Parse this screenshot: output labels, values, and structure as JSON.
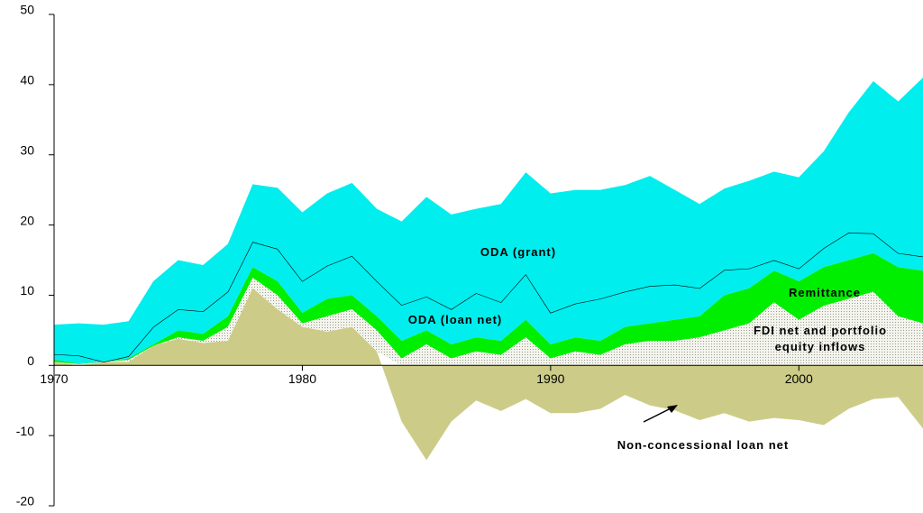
{
  "chart_data": {
    "type": "stacked_area",
    "x": [
      1970,
      1971,
      1972,
      1973,
      1974,
      1975,
      1976,
      1977,
      1978,
      1979,
      1980,
      1981,
      1982,
      1983,
      1984,
      1985,
      1986,
      1987,
      1988,
      1989,
      1990,
      1991,
      1992,
      1993,
      1994,
      1995,
      1996,
      1997,
      1998,
      1999,
      2000,
      2001,
      2002,
      2003,
      2004,
      2005
    ],
    "series": [
      {
        "name": "Non-concessional loan net",
        "color": "#cccc88",
        "values": [
          0.5,
          0,
          0.5,
          0.5,
          2.8,
          3.8,
          3.2,
          3.5,
          11,
          8,
          5.5,
          4.8,
          5.5,
          2,
          -8,
          -13.5,
          -8,
          -5,
          -6.5,
          -4.8,
          -6.8,
          -6.8,
          -6.2,
          -4.2,
          -5.7,
          -6.4,
          -7.8,
          -6.8,
          -8,
          -7.5,
          -7.8,
          -8.5,
          -6.2,
          -4.8,
          -4.5,
          -9
        ]
      },
      {
        "name": "FDI net and portfolio equity inflows",
        "color": "#b8b8a8",
        "pattern": "dots",
        "values": [
          0,
          0.2,
          0,
          0.3,
          0,
          0.2,
          0.3,
          2,
          1.5,
          2,
          0.5,
          2.2,
          2.5,
          3,
          1,
          3,
          1,
          2,
          1.5,
          4,
          1,
          2,
          1.5,
          3,
          3.5,
          3.5,
          4,
          5,
          6,
          9,
          6.5,
          8.5,
          9.5,
          10.5,
          7,
          6
        ]
      },
      {
        "name": "Remittance",
        "color": "#00ee00",
        "values": [
          0.3,
          0.1,
          0,
          0.2,
          0.2,
          1,
          1,
          1.5,
          1.5,
          2,
          1.5,
          2.5,
          2,
          2,
          2.5,
          2,
          2,
          2,
          2,
          2.5,
          2,
          2,
          2,
          2.5,
          2.5,
          3,
          3,
          5,
          5,
          4.5,
          5.5,
          5.5,
          5.5,
          5.5,
          7,
          7.5
        ]
      },
      {
        "name": "ODA (loan net)",
        "color": "#00eeee",
        "edge": "#000000",
        "values": [
          0.8,
          1.1,
          0,
          0.3,
          2.5,
          3,
          3.2,
          3.5,
          3.6,
          4.6,
          4.5,
          4.7,
          5.6,
          5,
          5.1,
          4.8,
          5,
          6.3,
          5.5,
          6.5,
          4.5,
          4.8,
          6,
          5,
          5.3,
          5,
          4,
          3.6,
          2.8,
          1.5,
          1.8,
          2.7,
          3.9,
          2.8,
          2,
          2
        ]
      },
      {
        "name": "ODA (grant)",
        "color": "#00eeee",
        "values": [
          4.2,
          4.6,
          5.3,
          5,
          6.5,
          7,
          6.6,
          6.8,
          8.2,
          8.7,
          9.8,
          10.3,
          10.4,
          10.3,
          11.9,
          14.2,
          13.5,
          12,
          14,
          14.5,
          17,
          16.2,
          15.5,
          15.2,
          15.7,
          13.5,
          12,
          11.6,
          12.5,
          12.6,
          13,
          13.8,
          17.1,
          21.7,
          21.6,
          25.5
        ]
      }
    ],
    "xlim": [
      1970,
      2005
    ],
    "xticks": [
      1970,
      1980,
      1990,
      2000
    ],
    "ylim": [
      -20,
      50
    ],
    "yticks": [
      -20,
      -10,
      0,
      10,
      20,
      30,
      40,
      50
    ]
  }
}
